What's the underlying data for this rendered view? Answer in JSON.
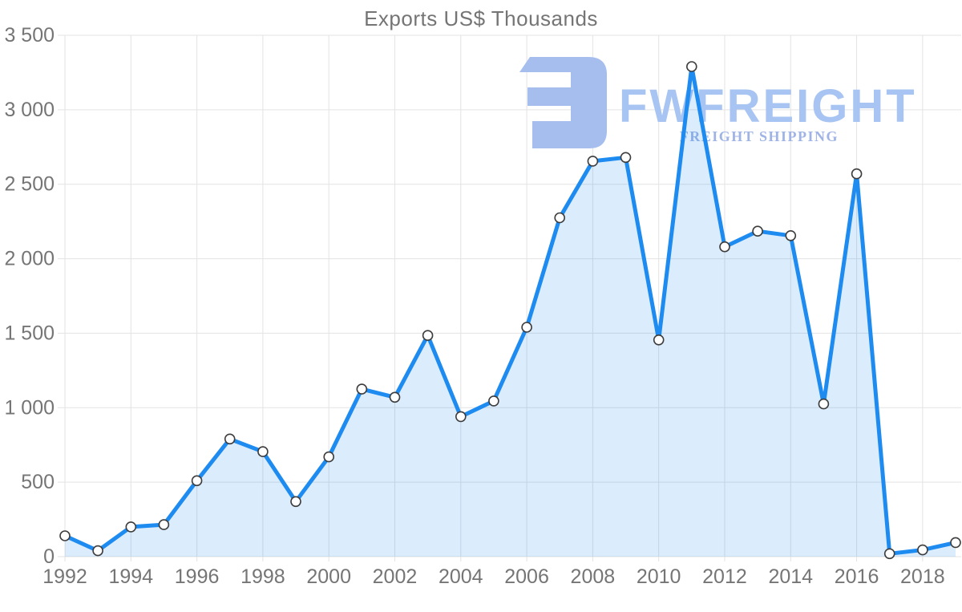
{
  "title": "Exports US$ Thousands",
  "watermark": {
    "brand": "FWFREIGHT",
    "tagline": "FREIGHT SHIPPING",
    "logo_icon": "fwfreight-logo"
  },
  "colors": {
    "line": "#1e8bf0",
    "area_fill": "#1e8bf0",
    "area_opacity": 0.16,
    "grid": "#e3e3e3",
    "axis_text": "#757575",
    "marker_fill": "#ffffff",
    "marker_stroke": "#3d3d3d",
    "watermark_logo": "#a6beee",
    "watermark_brand": "#a8c4f2",
    "watermark_tagline": "#9fb4e5",
    "background": "#ffffff"
  },
  "chart_data": {
    "type": "area",
    "title": "Exports US$ Thousands",
    "xlabel": "",
    "ylabel": "",
    "x": [
      1992,
      1993,
      1994,
      1995,
      1996,
      1997,
      1998,
      1999,
      2000,
      2001,
      2002,
      2003,
      2004,
      2005,
      2006,
      2007,
      2008,
      2009,
      2010,
      2011,
      2012,
      2013,
      2014,
      2015,
      2016,
      2017,
      2018,
      2019
    ],
    "values": [
      140,
      40,
      200,
      215,
      510,
      790,
      705,
      370,
      670,
      1125,
      1070,
      1485,
      940,
      1045,
      1540,
      2275,
      2655,
      2680,
      1455,
      3290,
      2080,
      2185,
      2155,
      1025,
      2570,
      20,
      45,
      95
    ],
    "series_name": "Exports US$ Thousands",
    "xlim": [
      1992,
      2019
    ],
    "ylim": [
      0,
      3500
    ],
    "ytick_interval": 500,
    "ytick_labels": [
      "0",
      "500",
      "1 000",
      "1 500",
      "2 000",
      "2 500",
      "3 000",
      "3 500"
    ],
    "xtick_years": [
      1992,
      1994,
      1996,
      1998,
      2000,
      2002,
      2004,
      2006,
      2008,
      2010,
      2012,
      2014,
      2016,
      2018
    ],
    "xtick_labels": [
      "1992",
      "1994",
      "1996",
      "1998",
      "2000",
      "2002",
      "2004",
      "2006",
      "2008",
      "2010",
      "2012",
      "2014",
      "2016",
      "2018"
    ],
    "grid": true,
    "legend": "none",
    "marker": "circle"
  }
}
